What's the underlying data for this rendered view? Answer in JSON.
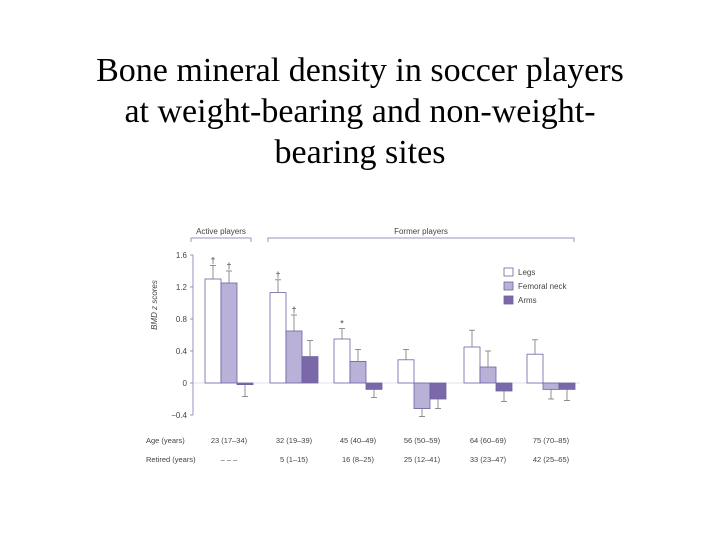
{
  "slide": {
    "title_lines": [
      "Bone mineral density in soccer players",
      "at weight-bearing and non-weight-",
      "bearing sites"
    ]
  },
  "chart_data": {
    "type": "bar",
    "ylabel": "BMD z scores",
    "ylim": [
      -0.4,
      1.6
    ],
    "yticks": [
      1.6,
      1.2,
      0.8,
      0.4,
      0,
      -0.4
    ],
    "ytick_labels": [
      "1.6",
      "1.2",
      "0.8",
      "0.4",
      "0",
      "−0.4"
    ],
    "group_headers": [
      {
        "label": "Active players",
        "groups": [
          0
        ]
      },
      {
        "label": "Former players",
        "groups": [
          1,
          2,
          3,
          4,
          5
        ]
      }
    ],
    "legend": {
      "placement": "top-right",
      "entries": [
        "Legs",
        "Femoral neck",
        "Arms"
      ]
    },
    "colors": {
      "Legs": "#ffffff",
      "Femoral neck": "#b9b1d8",
      "Arms": "#7a68a8",
      "stroke": "#6e62a0"
    },
    "series": [
      {
        "name": "Legs",
        "values": [
          1.3,
          1.13,
          0.55,
          0.29,
          0.45,
          0.36
        ],
        "errors": [
          0.17,
          0.16,
          0.13,
          0.13,
          0.21,
          0.18
        ],
        "marks": [
          "†",
          "†",
          "*",
          "",
          "",
          ""
        ]
      },
      {
        "name": "Femoral neck",
        "values": [
          1.25,
          0.65,
          0.27,
          -0.32,
          0.2,
          -0.08
        ],
        "errors": [
          0.15,
          0.2,
          0.15,
          0.1,
          0.2,
          0.12
        ],
        "marks": [
          "†",
          "†",
          "",
          "",
          "",
          ""
        ]
      },
      {
        "name": "Arms",
        "values": [
          -0.02,
          0.33,
          -0.08,
          -0.2,
          -0.1,
          -0.08
        ],
        "errors": [
          0.15,
          0.2,
          0.1,
          0.12,
          0.13,
          0.14
        ],
        "marks": [
          "",
          "",
          "",
          "",
          "",
          ""
        ]
      }
    ],
    "age_label": "Age (years)",
    "ages": [
      "23 (17–34)",
      "32 (19–39)",
      "45 (40–49)",
      "56 (50–59)",
      "64 (60–69)",
      "75 (70–85)"
    ],
    "retired_label": "Retired (years)",
    "retired": [
      "– – –",
      "5 (1–15)",
      "16 (8–25)",
      "25 (12–41)",
      "33 (23–47)",
      "42 (25–65)"
    ]
  }
}
